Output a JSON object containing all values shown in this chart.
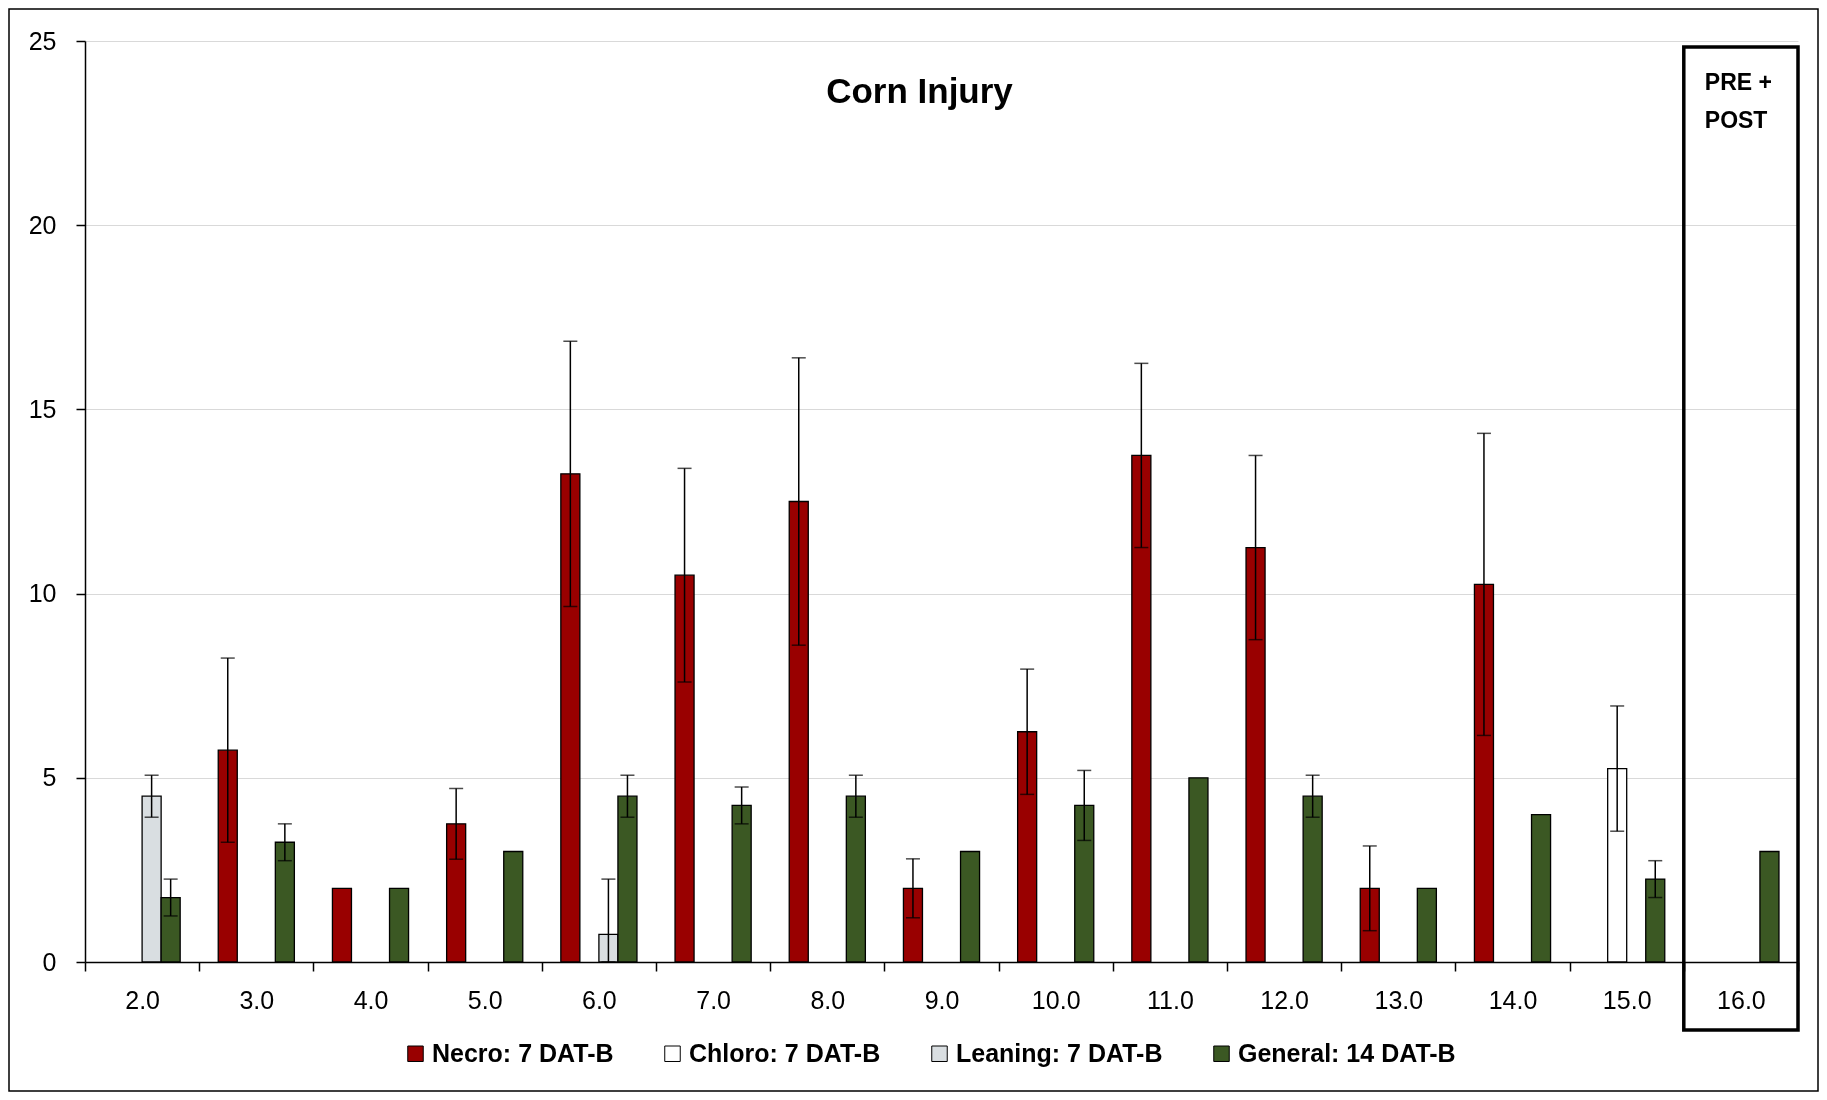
{
  "chart_data": {
    "type": "bar",
    "title": "Corn Injury",
    "categories": [
      "2.0",
      "3.0",
      "4.0",
      "5.0",
      "6.0",
      "7.0",
      "8.0",
      "9.0",
      "10.0",
      "11.0",
      "12.0",
      "13.0",
      "14.0",
      "15.0",
      "16.0"
    ],
    "series": [
      {
        "name": "Necro: 7 DAT-B",
        "color": "#990000",
        "values": [
          null,
          5.75,
          2,
          3.75,
          13.25,
          10.5,
          12.5,
          2,
          6.25,
          13.75,
          11.25,
          2,
          10.25,
          null,
          null
        ],
        "errors": [
          null,
          2.5,
          null,
          0.96,
          3.6,
          2.9,
          3.9,
          0.8,
          1.7,
          2.5,
          2.5,
          1.15,
          4.1,
          null,
          null
        ]
      },
      {
        "name": "Chloro: 7 DAT-B",
        "color": "#ffffff",
        "values": [
          null,
          null,
          null,
          null,
          null,
          null,
          null,
          null,
          null,
          null,
          null,
          null,
          null,
          5.25,
          null
        ],
        "errors": [
          null,
          null,
          null,
          null,
          null,
          null,
          null,
          null,
          null,
          null,
          null,
          null,
          null,
          1.7,
          null
        ]
      },
      {
        "name": "Leaning: 7 DAT-B",
        "color": "#d9dee1",
        "values": [
          4.5,
          null,
          null,
          null,
          0.75,
          null,
          null,
          null,
          null,
          null,
          null,
          null,
          null,
          null,
          null
        ],
        "errors": [
          0.57,
          null,
          null,
          null,
          [
            0,
            2.25
          ],
          null,
          null,
          null,
          null,
          null,
          null,
          null,
          null,
          null,
          null
        ]
      },
      {
        "name": "General: 14 DAT-B",
        "color": "#3b5823",
        "values": [
          1.75,
          3.25,
          2,
          3,
          4.5,
          4.25,
          4.5,
          3,
          4.25,
          5,
          4.5,
          2,
          4,
          2.25,
          3
        ],
        "errors": [
          0.5,
          0.5,
          null,
          null,
          0.57,
          0.5,
          0.57,
          null,
          0.95,
          null,
          0.57,
          null,
          null,
          0.5,
          null
        ]
      }
    ],
    "ylim": [
      0,
      25
    ],
    "yticks": [
      0,
      5,
      10,
      15,
      20,
      25
    ],
    "grid": "y",
    "legend": "bottom",
    "annotations": [
      "PRE + POST"
    ]
  }
}
